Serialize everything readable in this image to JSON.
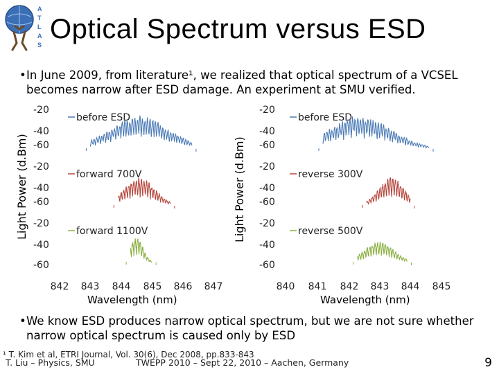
{
  "slide": {
    "title": "Optical Spectrum versus ESD",
    "bullet1": "In June 2009, from literature¹, we realized that optical spectrum of a VCSEL becomes narrow after ESD damage. An experiment at SMU verified.",
    "bullet2": "We know ESD produces narrow optical spectrum, but we are not sure whether narrow optical spectrum is caused only by ESD",
    "footnote": "¹ T. Kim et al, ETRI Journal, Vol. 30(6), Dec 2008, pp.833-843",
    "author": "T. Liu – Physics, SMU",
    "conference": "TWEPP 2010 – Sept 22, 2010 – Aachen, Germany",
    "page_number": "9"
  },
  "axes": {
    "ylabel": "Light Power (d.Bm)",
    "xlabel": "Wavelength (nm)",
    "ytick_labels": [
      "-20",
      "-40",
      "-60"
    ]
  },
  "colors": {
    "blue": "#4a7ab5",
    "red": "#b5453c",
    "green": "#8cb043"
  },
  "chart_data": [
    {
      "type": "line",
      "column": "left",
      "x_ticks": [
        842,
        843,
        844,
        845,
        846,
        847
      ],
      "xlim": [
        842,
        847
      ],
      "panels": [
        {
          "label": "before ESD",
          "color": "#4a7ab5",
          "ylim": [
            -60,
            -20
          ],
          "center": 844.6,
          "span": [
            843.0,
            846.3
          ],
          "peak": -25
        },
        {
          "label": "forward 700V",
          "color": "#b5453c",
          "ylim": [
            -60,
            -20
          ],
          "center": 844.6,
          "span": [
            843.9,
            845.6
          ],
          "peak": -30
        },
        {
          "label": "forward 1100V",
          "color": "#8cb043",
          "ylim": [
            -60,
            -20
          ],
          "center": 844.5,
          "span": [
            844.3,
            845.0
          ],
          "peak": -33
        }
      ]
    },
    {
      "type": "line",
      "column": "right",
      "x_ticks": [
        840,
        841,
        842,
        843,
        844,
        845
      ],
      "xlim": [
        840,
        845
      ],
      "panels": [
        {
          "label": "before ESD",
          "color": "#4a7ab5",
          "ylim": [
            -60,
            -20
          ],
          "center": 842.4,
          "span": [
            841.2,
            844.6
          ],
          "peak": -25
        },
        {
          "label": "reverse 300V",
          "color": "#b5453c",
          "ylim": [
            -60,
            -20
          ],
          "center": 843.4,
          "span": [
            842.6,
            844.0
          ],
          "peak": -30
        },
        {
          "label": "reverse 500V",
          "color": "#8cb043",
          "ylim": [
            -60,
            -20
          ],
          "center": 843.0,
          "span": [
            842.3,
            843.9
          ],
          "peak": -37
        }
      ]
    }
  ]
}
